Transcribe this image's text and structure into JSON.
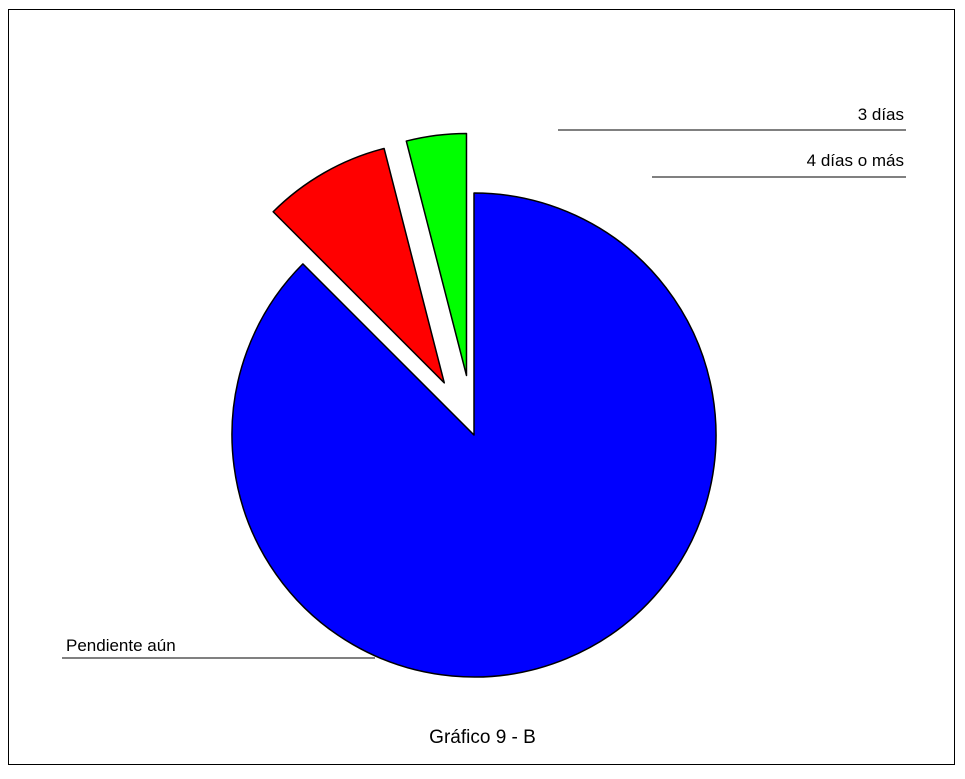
{
  "chart_data": {
    "type": "pie",
    "caption": "Gráfico 9 - B",
    "slices": [
      {
        "label": "Pendiente aún",
        "value": 87.5,
        "color": "#0000ff"
      },
      {
        "label": "3 días",
        "value": 8.5,
        "color": "#ff0000"
      },
      {
        "label": "4 días o más",
        "value": 4.0,
        "color": "#00ff00"
      }
    ],
    "start_angle_deg": 0,
    "exploded": [
      "3 días",
      "4 días o más"
    ],
    "legend": "none"
  }
}
